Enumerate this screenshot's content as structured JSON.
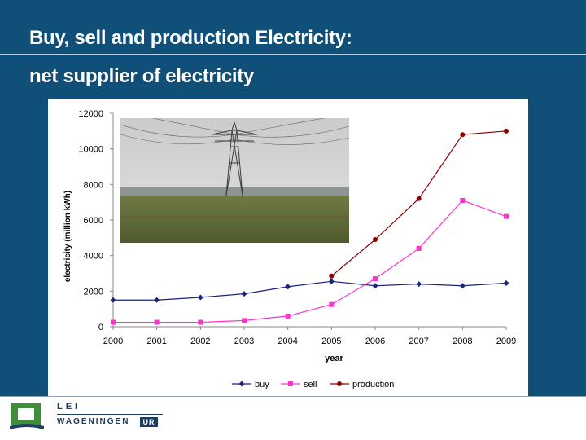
{
  "slide": {
    "title_line1": "Buy, sell and production Electricity:",
    "title_line2": "net supplier of electricity"
  },
  "branding": {
    "lei": "LEI",
    "wageningen": "WAGENINGEN",
    "ur": "UR"
  },
  "chart_data": {
    "type": "line",
    "xlabel": "year",
    "ylabel": "electricity (million kWh)",
    "categories": [
      "2000",
      "2001",
      "2002",
      "2003",
      "2004",
      "2005",
      "2006",
      "2007",
      "2008",
      "2009"
    ],
    "ylim": [
      0,
      12000
    ],
    "yticks": [
      "0",
      "2000",
      "4000",
      "6000",
      "8000",
      "10000",
      "12000"
    ],
    "grid": false,
    "legend_position": "bottom",
    "series": [
      {
        "name": "buy",
        "color": "#1a237e",
        "marker": "diamond",
        "values": [
          1500,
          1500,
          1650,
          1850,
          2250,
          2550,
          2300,
          2400,
          2300,
          2450
        ]
      },
      {
        "name": "sell",
        "color": "#ff33cc",
        "marker": "square",
        "values": [
          250,
          250,
          250,
          350,
          600,
          1250,
          2700,
          4400,
          7100,
          6200
        ]
      },
      {
        "name": "production",
        "color": "#8b0000",
        "marker": "circle",
        "values": [
          null,
          null,
          null,
          null,
          null,
          2850,
          4900,
          7200,
          10800,
          11000
        ]
      }
    ]
  },
  "colors": {
    "slide_background": "#0f4f78",
    "title_text": "#ffffff",
    "axis": "#888888",
    "logo_green": "#3f8f3a",
    "logo_navy": "#1d3d64"
  },
  "icons": {
    "photo": "power-pylon-field-photo",
    "logo": "lei-wageningen-ur-logo"
  }
}
